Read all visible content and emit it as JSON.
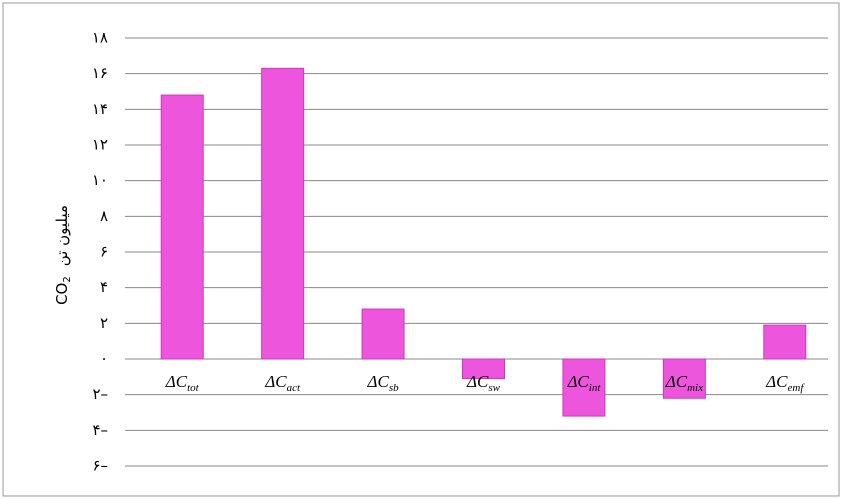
{
  "chart_data": {
    "type": "bar",
    "ylabel": {
      "gas": "CO",
      "gas_subscript": "2",
      "unit": "میلیون تن"
    },
    "categories": [
      {
        "symbol": "ΔC",
        "subscript": "tot"
      },
      {
        "symbol": "ΔC",
        "subscript": "act"
      },
      {
        "symbol": "ΔC",
        "subscript": "sb"
      },
      {
        "symbol": "ΔC",
        "subscript": "sw"
      },
      {
        "symbol": "ΔC",
        "subscript": "int"
      },
      {
        "symbol": "ΔC",
        "subscript": "mix"
      },
      {
        "symbol": "ΔC",
        "subscript": "emf"
      }
    ],
    "values": [
      14.8,
      16.3,
      2.8,
      -1.1,
      -3.2,
      -2.2,
      1.9
    ],
    "color": "#ee55dd",
    "ylim": [
      -6,
      18
    ],
    "yticks": [
      {
        "value": -6,
        "label": "۶–"
      },
      {
        "value": -4,
        "label": "۴–"
      },
      {
        "value": -2,
        "label": "۲–"
      },
      {
        "value": 0,
        "label": "۰"
      },
      {
        "value": 2,
        "label": "۲"
      },
      {
        "value": 4,
        "label": "۴"
      },
      {
        "value": 6,
        "label": "۶"
      },
      {
        "value": 8,
        "label": "۸"
      },
      {
        "value": 10,
        "label": "۱۰"
      },
      {
        "value": 12,
        "label": "۱۲"
      },
      {
        "value": 14,
        "label": "۱۴"
      },
      {
        "value": 16,
        "label": "۱۶"
      },
      {
        "value": 18,
        "label": "۱۸"
      }
    ],
    "grid": true
  }
}
